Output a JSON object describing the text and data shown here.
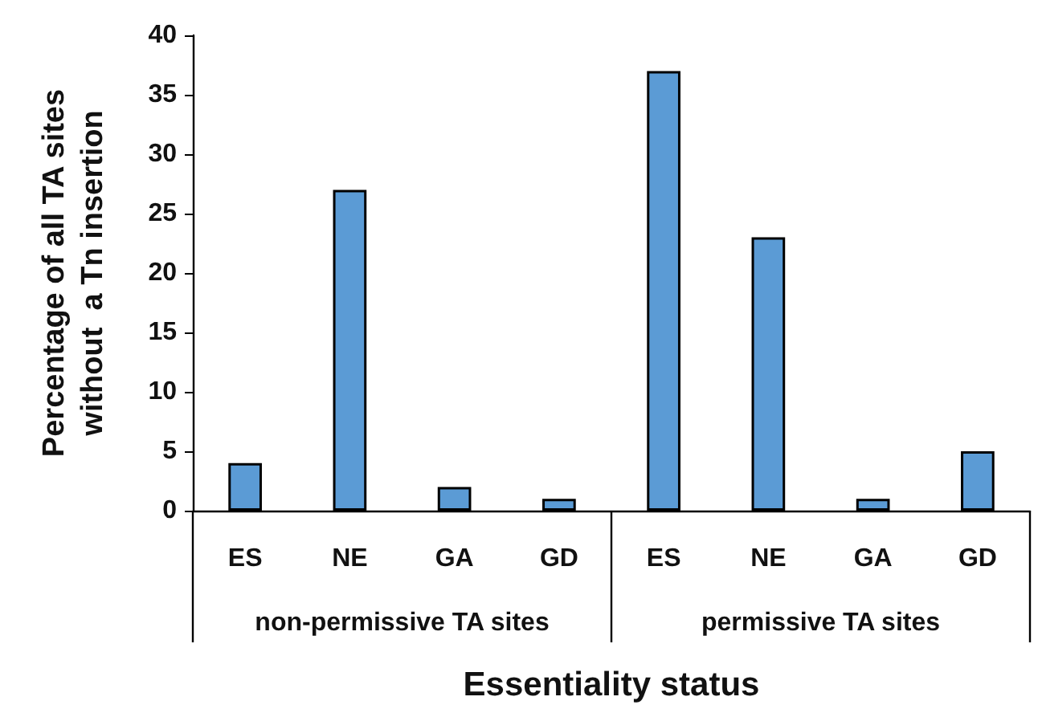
{
  "chart_data": {
    "type": "bar",
    "xlabel": "Essentiality status",
    "ylabel": "Percentage of all TA sites\nwithout  a Tn insertion",
    "categories": [
      "ES",
      "NE",
      "GA",
      "GD",
      "ES",
      "NE",
      "GA",
      "GD"
    ],
    "values": [
      4,
      27,
      2,
      1,
      37,
      23,
      1,
      5
    ],
    "color": "#5b9bd5",
    "ylim": [
      0,
      40
    ],
    "yticks": [
      0,
      5,
      10,
      15,
      20,
      25,
      30,
      35,
      40
    ],
    "grid": false,
    "annotations": [
      "non-permissive TA sites",
      "permissive TA sites"
    ]
  }
}
